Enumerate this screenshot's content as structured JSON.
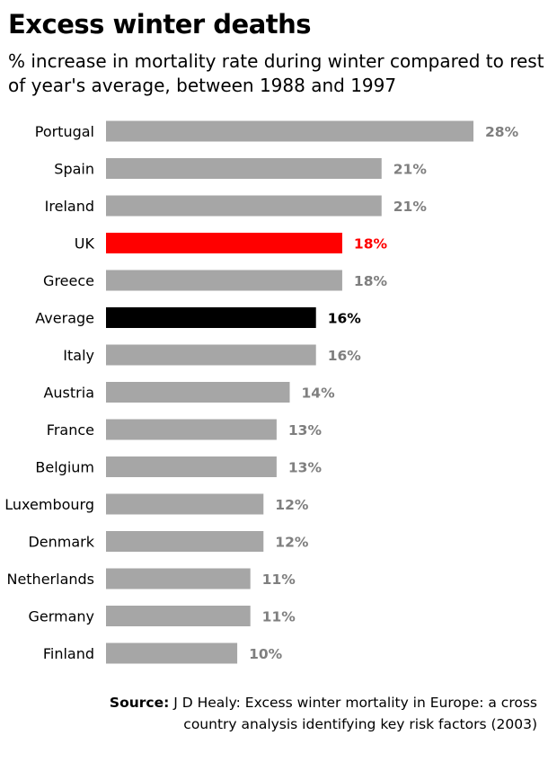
{
  "title": "Excess winter deaths",
  "subtitle": "% increase in mortality rate during winter compared to rest of year's average, between 1988 and 1997",
  "source": {
    "label": "Source:",
    "text_line1": "J D Healy: Excess winter mortality in Europe: a cross",
    "text_line2": "country analysis identifying key risk factors (2003)"
  },
  "colors": {
    "default_bar": "#a6a6a6",
    "default_label": "#7f7f7f",
    "highlight_uk": "#ff0000",
    "average": "#000000"
  },
  "chart_data": {
    "type": "bar",
    "orientation": "horizontal",
    "title": "Excess winter deaths",
    "xlabel": "",
    "ylabel": "",
    "xlim": [
      0,
      28
    ],
    "grid": false,
    "legend": "none",
    "categories": [
      "Portugal",
      "Spain",
      "Ireland",
      "UK",
      "Greece",
      "Average",
      "Italy",
      "Austria",
      "France",
      "Belgium",
      "Luxembourg",
      "Denmark",
      "Netherlands",
      "Germany",
      "Finland"
    ],
    "values": [
      28,
      21,
      21,
      18,
      18,
      16,
      16,
      14,
      13,
      13,
      12,
      12,
      11,
      11,
      10
    ],
    "labels": [
      "28%",
      "21%",
      "21%",
      "18%",
      "18%",
      "16%",
      "16%",
      "14%",
      "13%",
      "13%",
      "12%",
      "12%",
      "11%",
      "11%",
      "10%"
    ],
    "highlights": {
      "UK": "red",
      "Average": "black"
    }
  }
}
